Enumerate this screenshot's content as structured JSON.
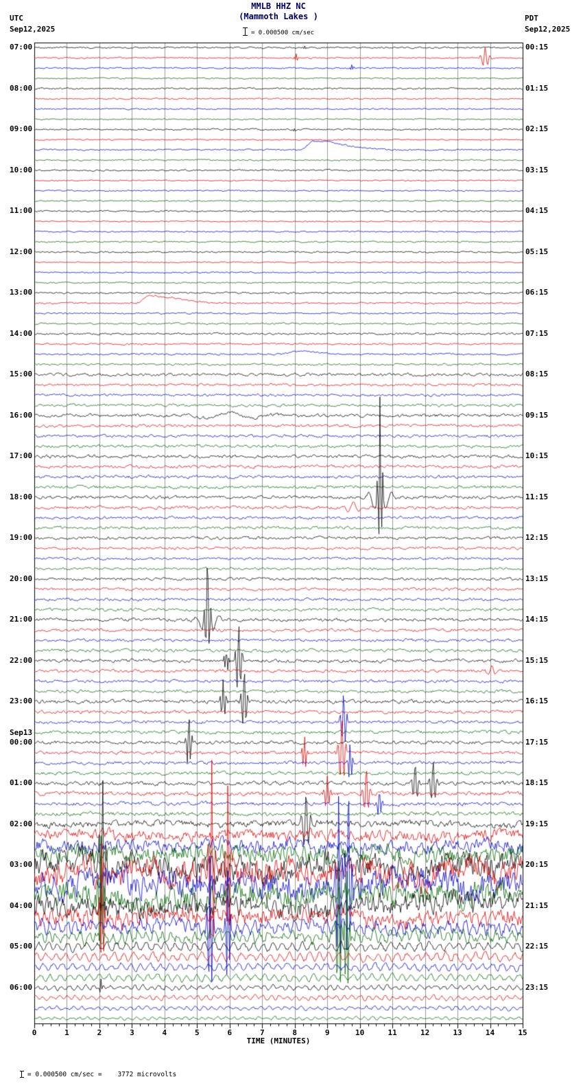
{
  "header": {
    "title": "MMLB HHZ NC",
    "subtitle": "(Mammoth Lakes )",
    "left_tz": "UTC",
    "left_date": "Sep12,2025",
    "right_tz": "PDT",
    "right_date": "Sep12,2025",
    "scale_text": "= 0.000500 cm/sec"
  },
  "footer": {
    "scale_text": "= 0.000500 cm/sec =    3772 microvolts"
  },
  "x_axis": {
    "title": "TIME (MINUTES)",
    "min": 0,
    "max": 15,
    "ticks": [
      "0",
      "1",
      "2",
      "3",
      "4",
      "5",
      "6",
      "7",
      "8",
      "9",
      "10",
      "11",
      "12",
      "13",
      "14",
      "15"
    ]
  },
  "left_axis": {
    "timezone": "UTC",
    "labels": [
      {
        "text": "07:00",
        "row": 0
      },
      {
        "text": "08:00",
        "row": 4
      },
      {
        "text": "09:00",
        "row": 8
      },
      {
        "text": "10:00",
        "row": 12
      },
      {
        "text": "11:00",
        "row": 16
      },
      {
        "text": "12:00",
        "row": 20
      },
      {
        "text": "13:00",
        "row": 24
      },
      {
        "text": "14:00",
        "row": 28
      },
      {
        "text": "15:00",
        "row": 32
      },
      {
        "text": "16:00",
        "row": 36
      },
      {
        "text": "17:00",
        "row": 40
      },
      {
        "text": "18:00",
        "row": 44
      },
      {
        "text": "19:00",
        "row": 48
      },
      {
        "text": "20:00",
        "row": 52
      },
      {
        "text": "21:00",
        "row": 56
      },
      {
        "text": "22:00",
        "row": 60
      },
      {
        "text": "23:00",
        "row": 64
      },
      {
        "text": "Sep13",
        "row": 67.05
      },
      {
        "text": "00:00",
        "row": 68
      },
      {
        "text": "01:00",
        "row": 72
      },
      {
        "text": "02:00",
        "row": 76
      },
      {
        "text": "03:00",
        "row": 80
      },
      {
        "text": "04:00",
        "row": 84
      },
      {
        "text": "05:00",
        "row": 88
      },
      {
        "text": "06:00",
        "row": 92
      }
    ]
  },
  "right_axis": {
    "timezone": "PDT",
    "labels": [
      {
        "text": "00:15",
        "row": 0
      },
      {
        "text": "01:15",
        "row": 4
      },
      {
        "text": "02:15",
        "row": 8
      },
      {
        "text": "03:15",
        "row": 12
      },
      {
        "text": "04:15",
        "row": 16
      },
      {
        "text": "05:15",
        "row": 20
      },
      {
        "text": "06:15",
        "row": 24
      },
      {
        "text": "07:15",
        "row": 28
      },
      {
        "text": "08:15",
        "row": 32
      },
      {
        "text": "09:15",
        "row": 36
      },
      {
        "text": "10:15",
        "row": 40
      },
      {
        "text": "11:15",
        "row": 44
      },
      {
        "text": "12:15",
        "row": 48
      },
      {
        "text": "13:15",
        "row": 52
      },
      {
        "text": "14:15",
        "row": 56
      },
      {
        "text": "15:15",
        "row": 60
      },
      {
        "text": "16:15",
        "row": 64
      },
      {
        "text": "17:15",
        "row": 68
      },
      {
        "text": "18:15",
        "row": 72
      },
      {
        "text": "19:15",
        "row": 76
      },
      {
        "text": "20:15",
        "row": 80
      },
      {
        "text": "21:15",
        "row": 84
      },
      {
        "text": "22:15",
        "row": 88
      },
      {
        "text": "23:15",
        "row": 92
      }
    ]
  },
  "chart_data": {
    "type": "line",
    "kind": "helicorder-seismogram",
    "station": "MMLB HHZ NC",
    "location": "Mammoth Lakes",
    "minutes_per_row": 15,
    "rows_total": 96,
    "trace_colors": [
      "#000000",
      "#dd0000",
      "#0000cc",
      "#006600"
    ],
    "grid_color": "#999999",
    "row_amps": [
      [
        1.5,
        0
      ],
      [
        1.3,
        0
      ],
      [
        1.3,
        0
      ],
      [
        1.2,
        0
      ],
      [
        1.5,
        0
      ],
      [
        1.2,
        0
      ],
      [
        1.3,
        0
      ],
      [
        1.2,
        0
      ],
      [
        1.5,
        0
      ],
      [
        1.2,
        0
      ],
      [
        1.4,
        0
      ],
      [
        1.3,
        0
      ],
      [
        1.4,
        0
      ],
      [
        1.1,
        0
      ],
      [
        1.2,
        0
      ],
      [
        1.2,
        0
      ],
      [
        1.4,
        0
      ],
      [
        1.1,
        0
      ],
      [
        1.2,
        0
      ],
      [
        1.3,
        0
      ],
      [
        1.4,
        0
      ],
      [
        1.2,
        0
      ],
      [
        1.2,
        0
      ],
      [
        1.3,
        0
      ],
      [
        1.5,
        0
      ],
      [
        1.5,
        0
      ],
      [
        1.3,
        0
      ],
      [
        1.5,
        0
      ],
      [
        1.8,
        0
      ],
      [
        1.6,
        0
      ],
      [
        1.6,
        0
      ],
      [
        1.8,
        0
      ],
      [
        2.6,
        0.3
      ],
      [
        2.2,
        0.3
      ],
      [
        2.2,
        0.3
      ],
      [
        2.4,
        0.3
      ],
      [
        3.0,
        0.4
      ],
      [
        2.6,
        0.4
      ],
      [
        2.6,
        0.4
      ],
      [
        2.6,
        0.4
      ],
      [
        3.0,
        0.4
      ],
      [
        2.8,
        0.4
      ],
      [
        2.8,
        0.4
      ],
      [
        2.8,
        0.4
      ],
      [
        3.0,
        0.4
      ],
      [
        2.8,
        0.4
      ],
      [
        2.6,
        0.4
      ],
      [
        2.6,
        0.4
      ],
      [
        2.6,
        0.4
      ],
      [
        2.4,
        0.4
      ],
      [
        2.4,
        0.4
      ],
      [
        2.4,
        0.4
      ],
      [
        2.6,
        0.4
      ],
      [
        2.6,
        0.4
      ],
      [
        2.6,
        0.4
      ],
      [
        2.6,
        0.4
      ],
      [
        3.0,
        0.5
      ],
      [
        2.8,
        0.5
      ],
      [
        2.6,
        0.5
      ],
      [
        2.8,
        0.5
      ],
      [
        3.0,
        0.5
      ],
      [
        2.8,
        0.5
      ],
      [
        2.8,
        0.5
      ],
      [
        2.8,
        0.5
      ],
      [
        3.2,
        0.5
      ],
      [
        3.0,
        0.5
      ],
      [
        2.8,
        0.5
      ],
      [
        3.0,
        0.5
      ],
      [
        3.2,
        0.5
      ],
      [
        3.0,
        0.5
      ],
      [
        3.0,
        0.5
      ],
      [
        3.0,
        0.5
      ],
      [
        3.6,
        0.8
      ],
      [
        3.6,
        0.8
      ],
      [
        3.4,
        0.8
      ],
      [
        3.6,
        0.8
      ],
      [
        6,
        2
      ],
      [
        10,
        5
      ],
      [
        12,
        6
      ],
      [
        16,
        8
      ],
      [
        22,
        12
      ],
      [
        24,
        14
      ],
      [
        24,
        14
      ],
      [
        22,
        12
      ],
      [
        18,
        10
      ],
      [
        14,
        8
      ],
      [
        10,
        6
      ],
      [
        8,
        5
      ],
      [
        4,
        1
      ],
      [
        4,
        1
      ],
      [
        3.5,
        1
      ],
      [
        3,
        1
      ],
      [
        2.5,
        0.5
      ],
      [
        2.5,
        0.5
      ],
      [
        2.2,
        0.5
      ],
      [
        1.8,
        0.5
      ]
    ],
    "sines": [
      {
        "row": 84,
        "amp": 4,
        "period": 0.25
      },
      {
        "row": 85,
        "amp": 4,
        "period": 0.25
      },
      {
        "row": 86,
        "amp": 5,
        "period": 0.25
      },
      {
        "row": 87,
        "amp": 5,
        "period": 0.25
      },
      {
        "row": 88,
        "amp": 5,
        "period": 0.3
      },
      {
        "row": 89,
        "amp": 5,
        "period": 0.3
      },
      {
        "row": 90,
        "amp": 4,
        "period": 0.3
      },
      {
        "row": 91,
        "amp": 4,
        "period": 0.3
      },
      {
        "row": 92,
        "amp": 2.5,
        "period": 0.25
      },
      {
        "row": 93,
        "amp": 2.5,
        "period": 0.25
      },
      {
        "row": 94,
        "amp": 2,
        "period": 0.25
      },
      {
        "row": 95,
        "amp": 1.5,
        "period": 0.25
      }
    ],
    "events": [
      {
        "row": 0,
        "min": 8.3,
        "amp": 3,
        "width": 0.05
      },
      {
        "row": 1,
        "min": 8.05,
        "amp": 5,
        "width": 0.05
      },
      {
        "row": 1,
        "min": 13.85,
        "amp": 16,
        "width": 0.12
      },
      {
        "row": 2,
        "min": 9.75,
        "amp": 4,
        "width": 0.05
      },
      {
        "row": 8,
        "min": 8.0,
        "amp": 4,
        "width": 0.05
      },
      {
        "row": 36,
        "min": 6.0,
        "amp": 5,
        "width": 1.2
      },
      {
        "row": 44,
        "min": 10.62,
        "amp": 130,
        "width": 0.07
      },
      {
        "row": 44,
        "min": 10.62,
        "amp": 25,
        "width": 0.3
      },
      {
        "row": 45,
        "min": 9.8,
        "amp": 8,
        "width": 0.25
      },
      {
        "row": 56,
        "min": 5.32,
        "amp": 75,
        "width": 0.09
      },
      {
        "row": 56,
        "min": 5.32,
        "amp": 18,
        "width": 0.3
      },
      {
        "row": 60,
        "min": 5.9,
        "amp": 22,
        "width": 0.06
      },
      {
        "row": 60,
        "min": 6.28,
        "amp": 55,
        "width": 0.09
      },
      {
        "row": 61,
        "min": 14.05,
        "amp": 8,
        "width": 0.2
      },
      {
        "row": 64,
        "min": 5.8,
        "amp": 32,
        "width": 0.08
      },
      {
        "row": 64,
        "min": 6.45,
        "amp": 48,
        "width": 0.09
      },
      {
        "row": 66,
        "min": 9.5,
        "amp": 45,
        "width": 0.09
      },
      {
        "row": 68,
        "min": 4.75,
        "amp": 42,
        "width": 0.08
      },
      {
        "row": 69,
        "min": 8.3,
        "amp": 28,
        "width": 0.07
      },
      {
        "row": 69,
        "min": 9.45,
        "amp": 55,
        "width": 0.1
      },
      {
        "row": 70,
        "min": 9.7,
        "amp": 30,
        "width": 0.07
      },
      {
        "row": 72,
        "min": 11.7,
        "amp": 30,
        "width": 0.1
      },
      {
        "row": 72,
        "min": 12.25,
        "amp": 35,
        "width": 0.1
      },
      {
        "row": 73,
        "min": 9.0,
        "amp": 25,
        "width": 0.09
      },
      {
        "row": 73,
        "min": 10.2,
        "amp": 38,
        "width": 0.1
      },
      {
        "row": 74,
        "min": 10.6,
        "amp": 20,
        "width": 0.08
      },
      {
        "row": 76,
        "min": 8.35,
        "amp": 45,
        "width": 0.12
      },
      {
        "row": 80,
        "min": 2.1,
        "amp": 140,
        "width": 0.09
      },
      {
        "row": 81,
        "min": 5.45,
        "amp": 150,
        "width": 0.09
      },
      {
        "row": 81,
        "min": 5.95,
        "amp": 130,
        "width": 0.08
      },
      {
        "row": 82,
        "min": 9.35,
        "amp": 150,
        "width": 0.09
      },
      {
        "row": 82,
        "min": 9.65,
        "amp": 150,
        "width": 0.09
      },
      {
        "row": 83,
        "min": 2.05,
        "amp": 110,
        "width": 0.08
      },
      {
        "row": 85,
        "min": 2.08,
        "amp": 100,
        "width": 0.07
      },
      {
        "row": 86,
        "min": 5.4,
        "amp": 120,
        "width": 0.08
      },
      {
        "row": 86,
        "min": 5.95,
        "amp": 100,
        "width": 0.07
      },
      {
        "row": 87,
        "min": 9.35,
        "amp": 115,
        "width": 0.08
      },
      {
        "row": 87,
        "min": 9.6,
        "amp": 110,
        "width": 0.07
      },
      {
        "row": 92,
        "min": 2.05,
        "amp": 10,
        "width": 0.06
      }
    ],
    "bumps": [
      {
        "row": 10,
        "start": 8.2,
        "peak": 8.55,
        "end": 11.4,
        "height": 13
      },
      {
        "row": 25,
        "start": 3.15,
        "peak": 3.5,
        "end": 6.3,
        "height": 11
      },
      {
        "row": 30,
        "start": 7.4,
        "peak": 8.2,
        "end": 9.8,
        "height": 4
      }
    ]
  }
}
